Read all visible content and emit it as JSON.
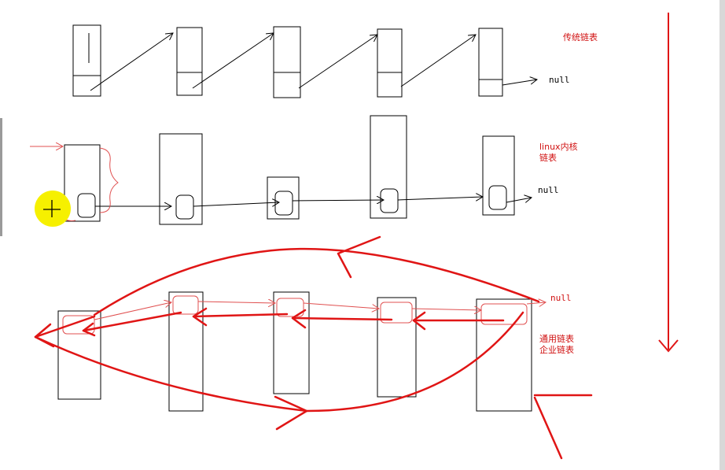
{
  "labels": {
    "traditional": "传统链表",
    "linux_kernel": "linux内核链表",
    "generic_line1": "通用链表",
    "generic_line2": "企业链表",
    "null_row1": "null",
    "null_row2": "null",
    "null_row3": "null"
  },
  "colors": {
    "ink": "#000000",
    "red": "#e01515",
    "pink": "#e05050",
    "cursor": "#f6f000"
  },
  "icons": {
    "cursor": "crosshair-cursor-icon"
  }
}
